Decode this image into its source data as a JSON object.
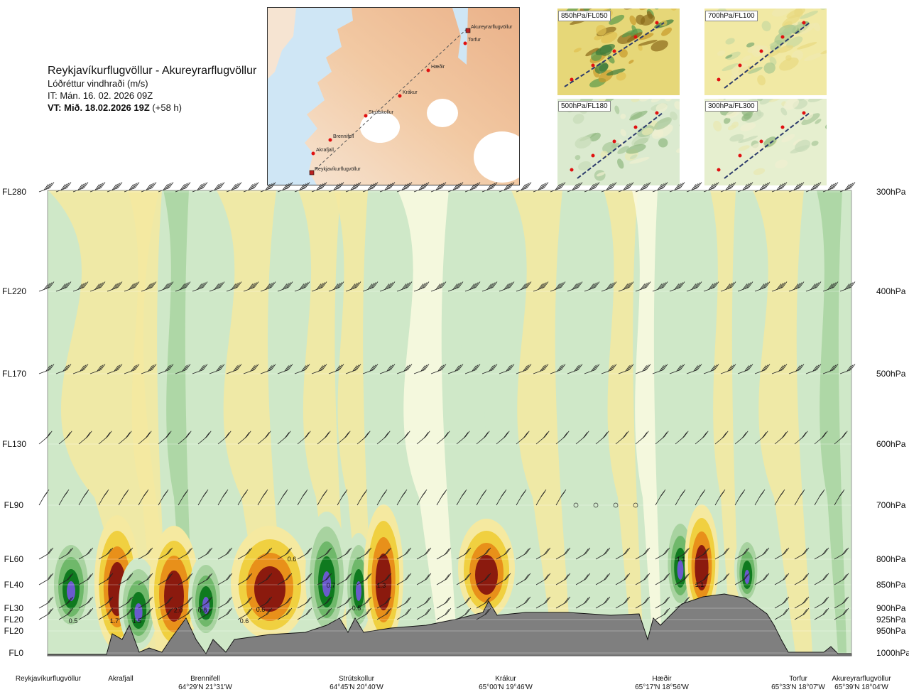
{
  "header": {
    "route": "Reykjavíkurflugvöllur - Akureyrarflugvöllur",
    "variable": "Lóðréttur vindhraði (m/s)",
    "issued": "IT: Mán. 16. 02. 2026 09Z",
    "valid": "VT: Mið. 18.02.2026 19Z",
    "lead": "(+58 h)"
  },
  "map": {
    "points": [
      {
        "name": "Akureyrarflugvöllur"
      },
      {
        "name": "Torfur"
      },
      {
        "name": "Hæðir"
      },
      {
        "name": "Krákur"
      },
      {
        "name": "Strútskollur"
      },
      {
        "name": "Brennifell"
      },
      {
        "name": "Akrafjall"
      },
      {
        "name": "Reykjavíkurflugvöllur"
      }
    ]
  },
  "panels": [
    "850hPa/FL050",
    "700hPa/FL100",
    "500hPa/FL180",
    "300hPa/FL300"
  ],
  "levels": [
    {
      "fl": "FL280",
      "hpa": "300hPa"
    },
    {
      "fl": "FL220",
      "hpa": "400hPa"
    },
    {
      "fl": "FL170",
      "hpa": "500hPa"
    },
    {
      "fl": "FL130",
      "hpa": "600hPa"
    },
    {
      "fl": "FL90",
      "hpa": "700hPa"
    },
    {
      "fl": "FL60",
      "hpa": "800hPa"
    },
    {
      "fl": "FL40",
      "hpa": "850hPa"
    },
    {
      "fl": "FL30",
      "hpa": "900hPa"
    },
    {
      "fl": "FL20",
      "hpa": "925hPa"
    },
    {
      "fl": "FL20",
      "hpa": "950hPa"
    },
    {
      "fl": "FL0",
      "hpa": "1000hPa"
    }
  ],
  "locations": [
    {
      "name": "Reykjavíkurflugvöllur",
      "coord": ""
    },
    {
      "name": "Akrafjall",
      "coord": ""
    },
    {
      "name": "Brennifell",
      "coord": "64°29'N 21°31'W"
    },
    {
      "name": "Strútskollur",
      "coord": "64°45'N 20°40'W"
    },
    {
      "name": "Krákur",
      "coord": "65°00'N 19°46'W"
    },
    {
      "name": "Hæðir",
      "coord": "65°17'N 18°56'W"
    },
    {
      "name": "Torfur",
      "coord": "65°33'N 18°07'W"
    },
    {
      "name": "Akureyrarflugvöllur",
      "coord": "65°39'N 18°04'W"
    }
  ],
  "chart_data": {
    "type": "heatmap",
    "x_axis": "distance along route",
    "y_axis": "pressure level (hPa)",
    "y_levels_hpa": [
      300,
      400,
      500,
      600,
      700,
      800,
      850,
      900,
      925,
      950,
      1000
    ],
    "colors": {
      "strong_up": "#8b1a0e",
      "up": "#e8901a",
      "weak_up": "#f5e9a0",
      "weak_down": "#cfe8c8",
      "down": "#6fb86a",
      "strong_down": "#0f7a1f",
      "extreme_down": "#6a5acd",
      "terrain": "#7f7f7f"
    },
    "labels": [
      "0.5",
      "1.7",
      "1.5",
      "2.0",
      "0.8",
      "0.6",
      "0.6",
      "0.6",
      "0.7",
      "0.5",
      "1.3",
      "1.1",
      "1.1"
    ]
  }
}
